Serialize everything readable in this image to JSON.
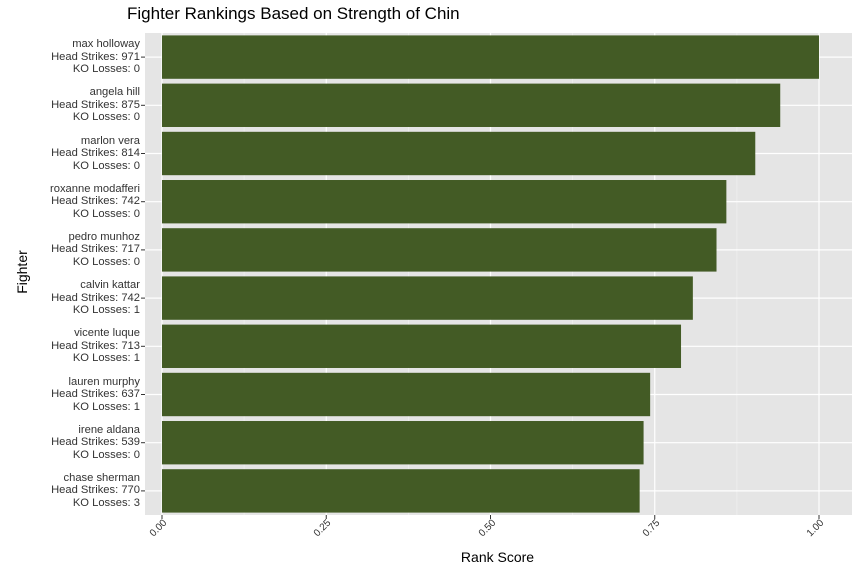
{
  "chart_data": {
    "type": "bar",
    "orientation": "horizontal",
    "title": "Fighter Rankings Based on Strength of Chin",
    "xlabel": "Rank Score",
    "ylabel": "Fighter",
    "xlim": [
      0,
      1
    ],
    "xticks": [
      "0.00",
      "0.25",
      "0.50",
      "0.75",
      "1.00"
    ],
    "xtick_values": [
      0,
      0.25,
      0.5,
      0.75,
      1.0
    ],
    "grid": true,
    "bar_color": "#435b25",
    "panel_color": "#e5e5e5",
    "categories": [
      {
        "name": "max holloway",
        "head_strikes": "Head Strikes: 971",
        "ko_losses": "KO Losses: 0",
        "value": 1.0
      },
      {
        "name": "angela hill",
        "head_strikes": "Head Strikes: 875",
        "ko_losses": "KO Losses: 0",
        "value": 0.941
      },
      {
        "name": "marlon vera",
        "head_strikes": "Head Strikes: 814",
        "ko_losses": "KO Losses: 0",
        "value": 0.903
      },
      {
        "name": "roxanne modafferi",
        "head_strikes": "Head Strikes: 742",
        "ko_losses": "KO Losses: 0",
        "value": 0.859
      },
      {
        "name": "pedro munhoz",
        "head_strikes": "Head Strikes: 717",
        "ko_losses": "KO Losses: 0",
        "value": 0.844
      },
      {
        "name": "calvin kattar",
        "head_strikes": "Head Strikes: 742",
        "ko_losses": "KO Losses: 1",
        "value": 0.808
      },
      {
        "name": "vicente luque",
        "head_strikes": "Head Strikes: 713",
        "ko_losses": "KO Losses: 1",
        "value": 0.79
      },
      {
        "name": "lauren murphy",
        "head_strikes": "Head Strikes: 637",
        "ko_losses": "KO Losses: 1",
        "value": 0.743
      },
      {
        "name": "irene aldana",
        "head_strikes": "Head Strikes: 539",
        "ko_losses": "KO Losses: 0",
        "value": 0.733
      },
      {
        "name": "chase sherman",
        "head_strikes": "Head Strikes: 770",
        "ko_losses": "KO Losses: 3",
        "value": 0.727
      }
    ]
  }
}
